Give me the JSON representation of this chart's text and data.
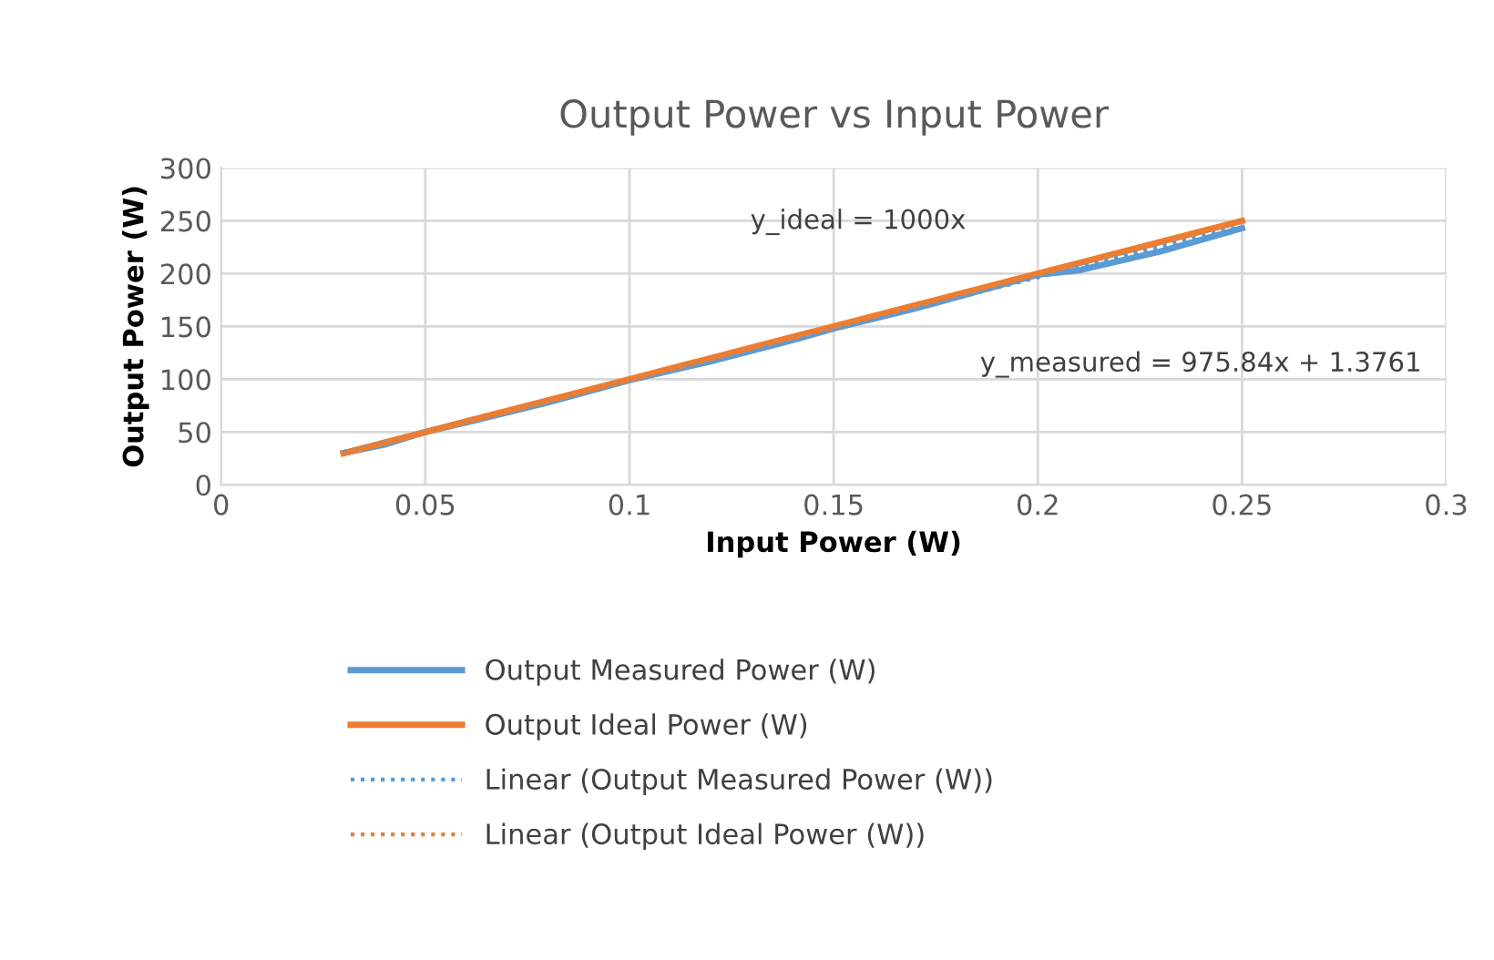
{
  "chart_data": {
    "type": "line",
    "title": "Output Power vs Input Power",
    "xlabel": "Input Power (W)",
    "ylabel": "Output Power (W)",
    "xlim": [
      0,
      0.3
    ],
    "xticks": [
      0,
      0.05,
      0.1,
      0.15,
      0.2,
      0.25,
      0.3
    ],
    "ylim": [
      0,
      300
    ],
    "yticks": [
      0,
      50,
      100,
      150,
      200,
      250,
      300
    ],
    "grid": true,
    "legend": "bottom",
    "marker": "none",
    "series": [
      {
        "name": "Output Measured Power (W)",
        "color": "#5b9bd5",
        "line_style": "solid",
        "x": [
          0.03,
          0.04,
          0.05,
          0.06,
          0.08,
          0.1,
          0.12,
          0.14,
          0.15,
          0.17,
          0.2,
          0.21,
          0.23,
          0.25
        ],
        "values": [
          30,
          38,
          50,
          59,
          78,
          99,
          117,
          137,
          148,
          167,
          199,
          203,
          221,
          243
        ]
      },
      {
        "name": "Output Ideal Power (W)",
        "color": "#ed7d31",
        "line_style": "solid",
        "x": [
          0.03,
          0.04,
          0.05,
          0.06,
          0.08,
          0.1,
          0.12,
          0.14,
          0.15,
          0.17,
          0.2,
          0.21,
          0.23,
          0.25
        ],
        "values": [
          30,
          40,
          50,
          60,
          80,
          100,
          120,
          140,
          150,
          170,
          200,
          210,
          230,
          250
        ]
      },
      {
        "name": "Linear (Output Measured Power (W))",
        "color": "#5b9bd5",
        "line_style": "dotted",
        "x": [
          0.03,
          0.25
        ],
        "values": [
          31,
          245
        ]
      },
      {
        "name": "Linear (Output Ideal Power (W))",
        "color": "#ed7d31",
        "line_style": "dotted",
        "x": [
          0.03,
          0.25
        ],
        "values": [
          30,
          250
        ]
      }
    ],
    "annotations": [
      "y_ideal = 1000x",
      "y_measured = 975.84x + 1.3761"
    ]
  }
}
